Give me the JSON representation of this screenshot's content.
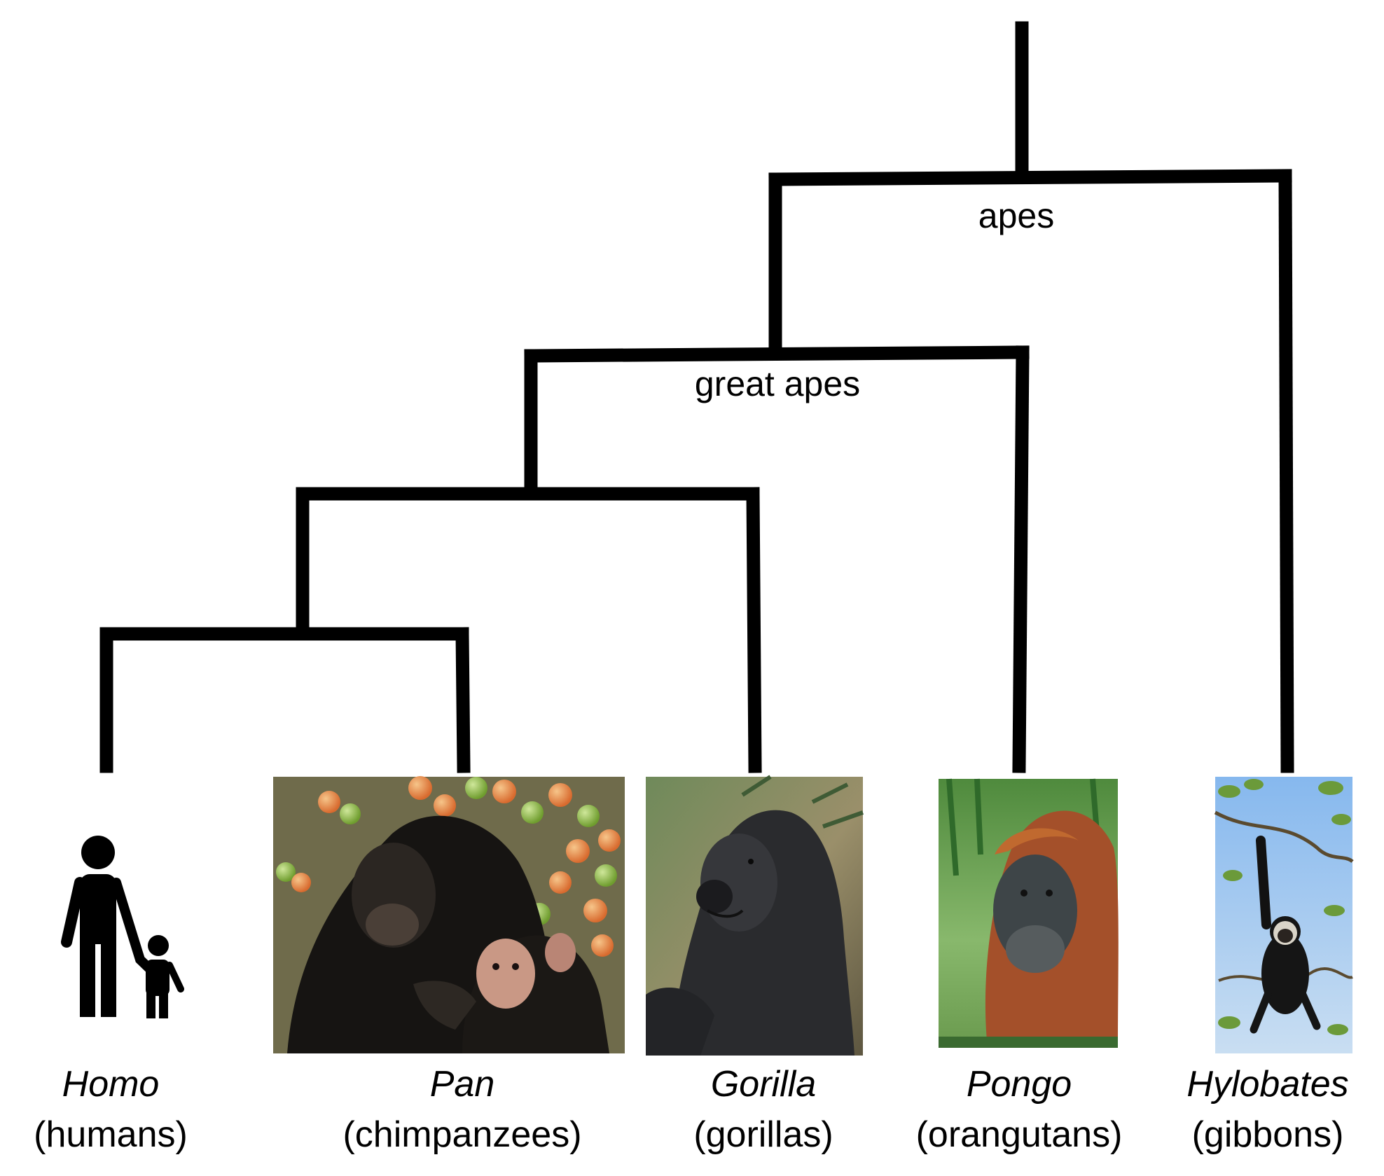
{
  "clades": {
    "apes": "apes",
    "great_apes": "great apes"
  },
  "taxa": [
    {
      "genus": "Homo",
      "common": "(humans)",
      "icon": "human-parent-child-icon"
    },
    {
      "genus": "Pan",
      "common": "(chimpanzees)",
      "icon": "chimpanzee-photo"
    },
    {
      "genus": "Gorilla",
      "common": "(gorillas)",
      "icon": "gorilla-photo"
    },
    {
      "genus": "Pongo",
      "common": "(orangutans)",
      "icon": "orangutan-photo"
    },
    {
      "genus": "Hylobates",
      "common": "(gibbons)",
      "icon": "gibbon-photo"
    }
  ],
  "colors": {
    "line": "#000000",
    "background": "#ffffff"
  }
}
